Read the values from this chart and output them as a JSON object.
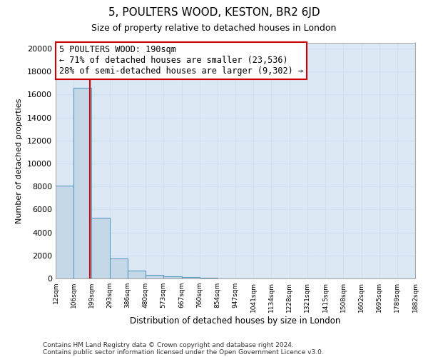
{
  "title_line1": "5, POULTERS WOOD, KESTON, BR2 6JD",
  "title_line2": "Size of property relative to detached houses in London",
  "xlabel": "Distribution of detached houses by size in London",
  "ylabel": "Number of detached properties",
  "bin_edges": [
    12,
    106,
    199,
    293,
    386,
    480,
    573,
    667,
    760,
    854,
    947,
    1041,
    1134,
    1228,
    1321,
    1415,
    1508,
    1602,
    1695,
    1789,
    1882
  ],
  "bar_heights": [
    8100,
    16600,
    5300,
    1750,
    700,
    300,
    175,
    100,
    50,
    10,
    2,
    0,
    0,
    0,
    0,
    0,
    0,
    0,
    0,
    0
  ],
  "bar_color": "#c5d8e8",
  "bar_edge_color": "#5a9abf",
  "bar_edge_width": 0.8,
  "grid_color": "#d0dff0",
  "bg_color": "#dce9f5",
  "property_line_x": 190,
  "property_line_color": "#cc0000",
  "annotation_text": "5 POULTERS WOOD: 190sqm\n← 71% of detached houses are smaller (23,536)\n28% of semi-detached houses are larger (9,302) →",
  "annotation_box_color": "#ffffff",
  "annotation_box_edge": "#cc0000",
  "ylim": [
    0,
    20500
  ],
  "yticks": [
    0,
    2000,
    4000,
    6000,
    8000,
    10000,
    12000,
    14000,
    16000,
    18000,
    20000
  ],
  "footer_line1": "Contains HM Land Registry data © Crown copyright and database right 2024.",
  "footer_line2": "Contains public sector information licensed under the Open Government Licence v3.0.",
  "tick_labels": [
    "12sqm",
    "106sqm",
    "199sqm",
    "293sqm",
    "386sqm",
    "480sqm",
    "573sqm",
    "667sqm",
    "760sqm",
    "854sqm",
    "947sqm",
    "1041sqm",
    "1134sqm",
    "1228sqm",
    "1321sqm",
    "1415sqm",
    "1508sqm",
    "1602sqm",
    "1695sqm",
    "1789sqm",
    "1882sqm"
  ],
  "title_fontsize": 11,
  "subtitle_fontsize": 9,
  "ylabel_fontsize": 8,
  "xlabel_fontsize": 8.5,
  "ytick_fontsize": 8,
  "xtick_fontsize": 6.5,
  "footer_fontsize": 6.5
}
